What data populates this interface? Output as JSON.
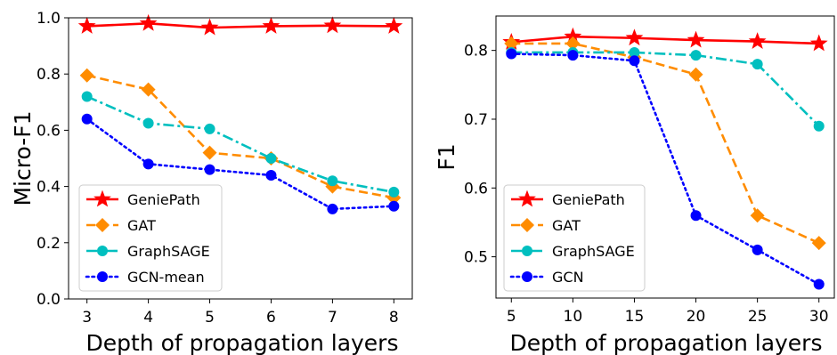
{
  "chart_data": [
    {
      "type": "line",
      "xlabel": "Depth of propagation layers",
      "ylabel": "Micro-F1",
      "x": [
        3,
        4,
        5,
        6,
        7,
        8
      ],
      "xlim": [
        2.7,
        8.3
      ],
      "ylim": [
        0.0,
        1.0
      ],
      "xticks": [
        "3",
        "4",
        "5",
        "6",
        "7",
        "8"
      ],
      "yticks": [
        "0.0",
        "0.2",
        "0.4",
        "0.6",
        "0.8",
        "1.0"
      ],
      "legend_position": "lower-left",
      "grid": false,
      "series": [
        {
          "name": "GeniePath",
          "values": [
            0.97,
            0.98,
            0.965,
            0.97,
            0.972,
            0.97
          ],
          "color": "#ff0000",
          "marker": "star",
          "dash": "solid"
        },
        {
          "name": "GAT",
          "values": [
            0.795,
            0.745,
            0.52,
            0.5,
            0.4,
            0.36
          ],
          "color": "#ff8c00",
          "marker": "diamond",
          "dash": "dashed"
        },
        {
          "name": "GraphSAGE",
          "values": [
            0.72,
            0.625,
            0.605,
            0.5,
            0.42,
            0.38
          ],
          "color": "#00bfbf",
          "marker": "circle",
          "dash": "dashdot"
        },
        {
          "name": "GCN-mean",
          "values": [
            0.64,
            0.48,
            0.46,
            0.44,
            0.32,
            0.33
          ],
          "color": "#0000ff",
          "marker": "circle",
          "dash": "dotted"
        }
      ]
    },
    {
      "type": "line",
      "xlabel": "Depth of propagation layers",
      "ylabel": "F1",
      "x": [
        5,
        10,
        15,
        20,
        25,
        30
      ],
      "xlim": [
        3.75,
        31.25
      ],
      "ylim": [
        0.44,
        0.85
      ],
      "xticks": [
        "5",
        "10",
        "15",
        "20",
        "25",
        "30"
      ],
      "yticks": [
        "0.5",
        "0.6",
        "0.7",
        "0.8"
      ],
      "legend_position": "lower-left",
      "grid": false,
      "series": [
        {
          "name": "GeniePath",
          "values": [
            0.812,
            0.82,
            0.818,
            0.815,
            0.813,
            0.81
          ],
          "color": "#ff0000",
          "marker": "star",
          "dash": "solid"
        },
        {
          "name": "GAT",
          "values": [
            0.81,
            0.81,
            0.79,
            0.765,
            0.56,
            0.52
          ],
          "color": "#ff8c00",
          "marker": "diamond",
          "dash": "dashed"
        },
        {
          "name": "GraphSAGE",
          "values": [
            0.797,
            0.797,
            0.797,
            0.793,
            0.78,
            0.69
          ],
          "color": "#00bfbf",
          "marker": "circle",
          "dash": "dashdot"
        },
        {
          "name": "GCN",
          "values": [
            0.795,
            0.793,
            0.785,
            0.56,
            0.51,
            0.46
          ],
          "color": "#0000ff",
          "marker": "circle",
          "dash": "dotted"
        }
      ]
    }
  ]
}
